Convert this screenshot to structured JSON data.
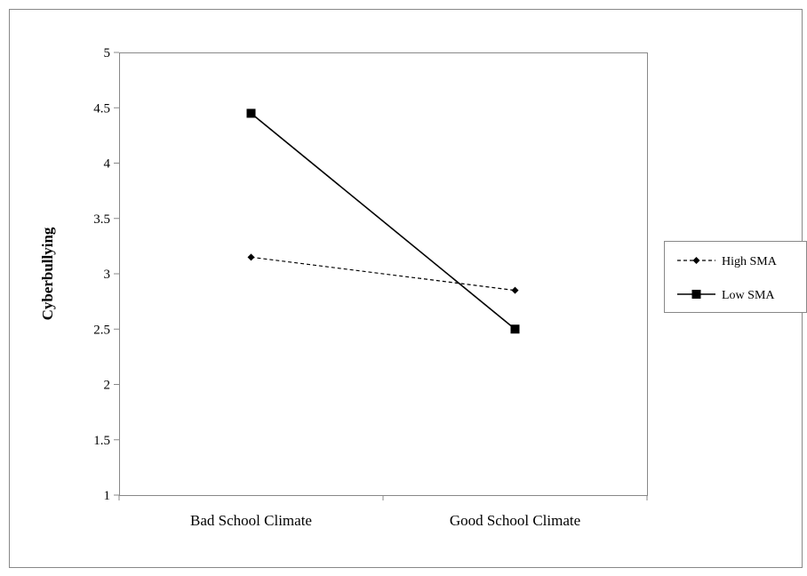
{
  "chart_data": {
    "type": "line",
    "title": "",
    "xlabel": "",
    "ylabel": "Cyberbullying",
    "categories": [
      "Bad School Climate",
      "Good School Climate"
    ],
    "ylim": [
      1,
      5
    ],
    "yticks": [
      1,
      1.5,
      2,
      2.5,
      3,
      3.5,
      4,
      4.5,
      5
    ],
    "ytick_labels": [
      "1",
      "1.5",
      "2",
      "2.5",
      "3",
      "3.5",
      "4",
      "4.5",
      "5"
    ],
    "grid": false,
    "legend_position": "right",
    "series": [
      {
        "name": "High SMA",
        "values": [
          3.15,
          2.85
        ],
        "line_style": "dashed",
        "marker": "diamond",
        "color": "#000000"
      },
      {
        "name": "Low SMA",
        "values": [
          4.45,
          2.5
        ],
        "line_style": "solid",
        "marker": "square",
        "color": "#000000"
      }
    ]
  }
}
